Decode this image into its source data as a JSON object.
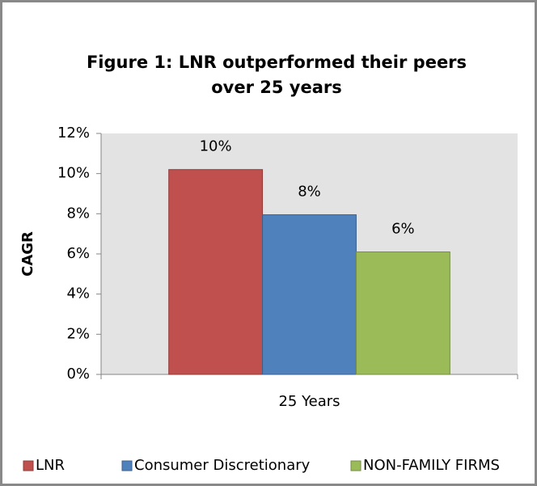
{
  "chart_data": {
    "type": "bar",
    "title": [
      "Figure 1: LNR outperformed their peers",
      "over 25 years"
    ],
    "y_label": "CAGR",
    "categories": [
      "25 Years"
    ],
    "series": [
      {
        "name": "LNR",
        "color": "#c0504d",
        "values": [
          10.2
        ],
        "value_labels": [
          "10%"
        ]
      },
      {
        "name": "Consumer Discretionary",
        "color": "#4f81bd",
        "values": [
          7.95
        ],
        "value_labels": [
          "8%"
        ]
      },
      {
        "name": "NON-FAMILY FIRMS",
        "color": "#9bbb59",
        "values": [
          6.1
        ],
        "value_labels": [
          "6%"
        ]
      }
    ],
    "ylim": [
      0,
      12
    ],
    "yticks": [
      {
        "value": 0,
        "label": "0%"
      },
      {
        "value": 2,
        "label": "2%"
      },
      {
        "value": 4,
        "label": "4%"
      },
      {
        "value": 6,
        "label": "6%"
      },
      {
        "value": 8,
        "label": "8%"
      },
      {
        "value": 10,
        "label": "10%"
      },
      {
        "value": 12,
        "label": "12%"
      }
    ],
    "grid": false,
    "legend": "bottom"
  }
}
